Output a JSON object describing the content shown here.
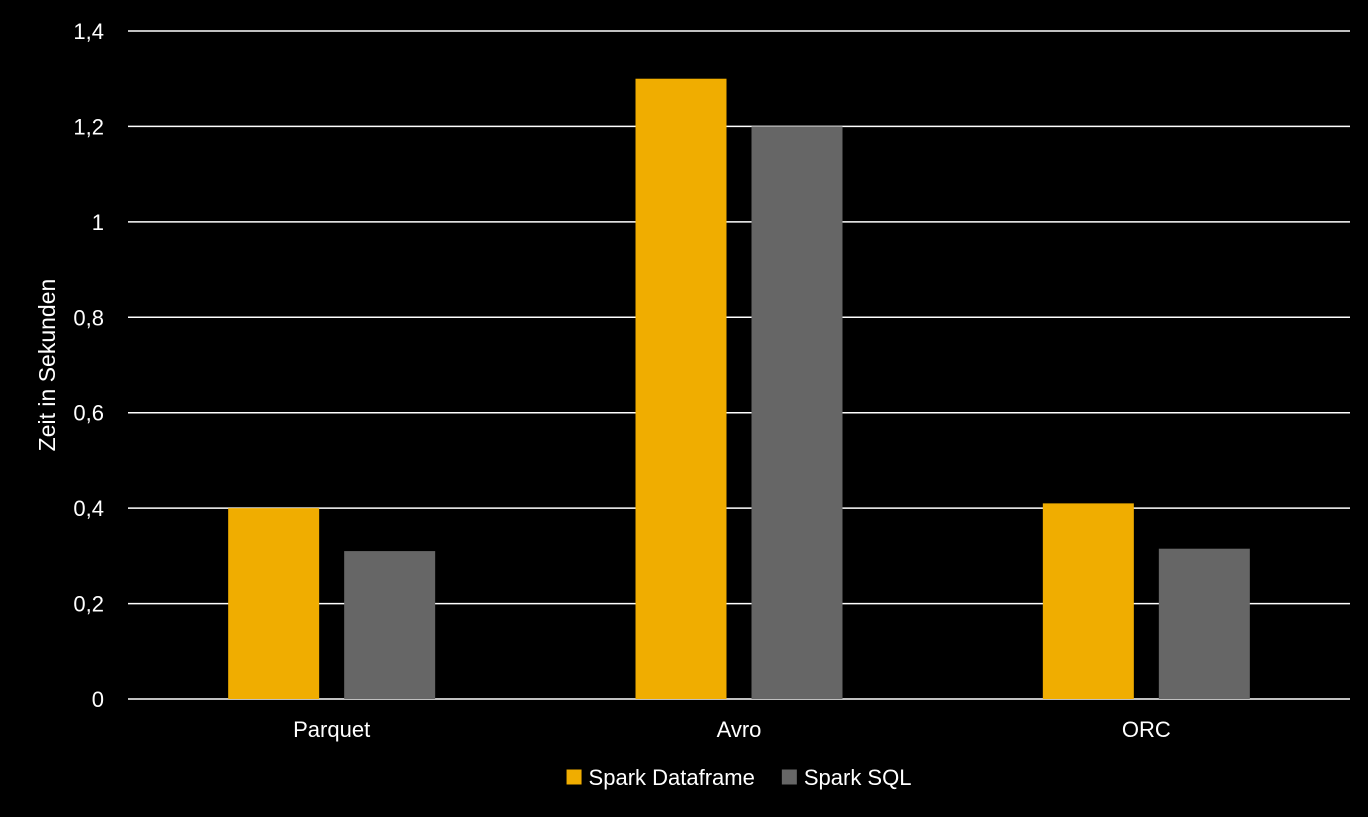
{
  "chart_data": {
    "type": "bar",
    "categories": [
      "Parquet",
      "Avro",
      "ORC"
    ],
    "series": [
      {
        "name": "Spark Dataframe",
        "values": [
          0.4,
          1.3,
          0.41
        ],
        "color": "#f0ad00"
      },
      {
        "name": "Spark SQL",
        "values": [
          0.31,
          1.2,
          0.315
        ],
        "color": "#666666"
      }
    ],
    "title": "",
    "xlabel": "",
    "ylabel": "Zeit in Sekunden",
    "ylim": [
      0,
      1.4
    ],
    "yticks": [
      0,
      0.2,
      0.4,
      0.6,
      0.8,
      1,
      1.2,
      1.4
    ],
    "ytick_labels": [
      "0",
      "0,2",
      "0,4",
      "0,6",
      "0,8",
      "1",
      "1,2",
      "1,4"
    ],
    "grid": true,
    "legend_position": "bottom",
    "background_color": "#000000",
    "text_color": "#ffffff",
    "grid_color": "#ffffff"
  }
}
